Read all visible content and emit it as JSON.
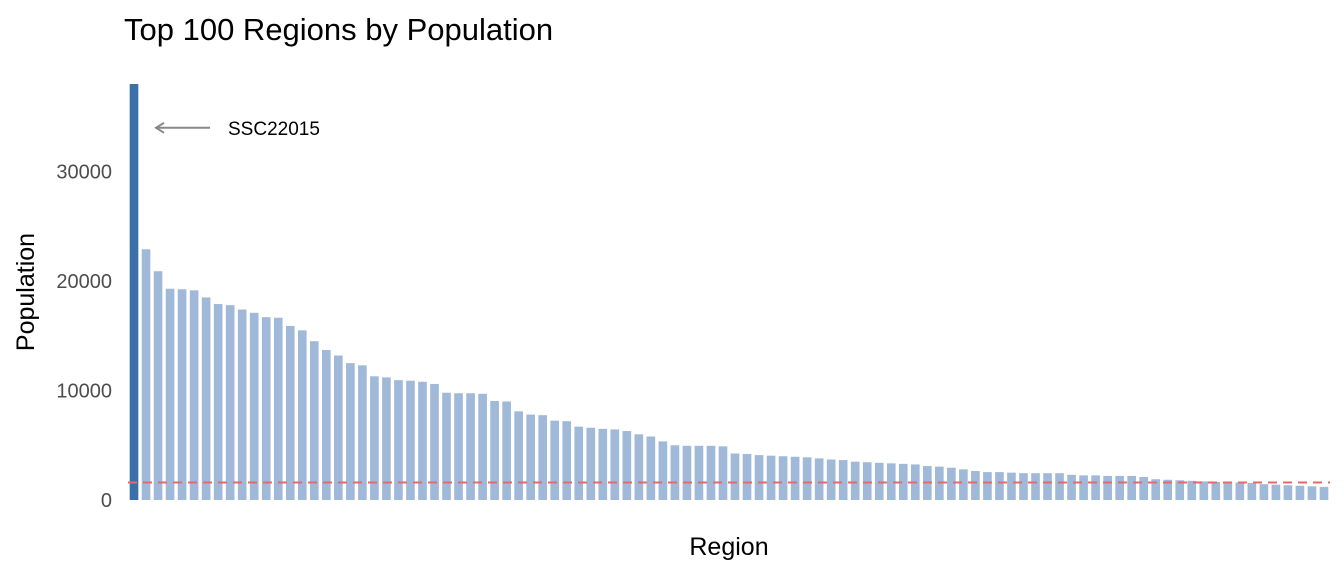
{
  "chart_data": {
    "type": "bar",
    "title": "Top 100 Regions by Population",
    "xlabel": "Region",
    "ylabel": "Population",
    "ylim": [
      0,
      38000
    ],
    "yticks": [
      0,
      10000,
      20000,
      30000
    ],
    "grid": false,
    "legend": "none",
    "colors": {
      "highlight_bar": "#3b6fa8",
      "bar": "#a0b9d9",
      "reference_line": "#e8686a",
      "annotation_arrow": "#888888",
      "text": "#000000",
      "tick_text": "#4d4d4d"
    },
    "highlight_index": 0,
    "annotation": {
      "text": "SSC22015",
      "y": 34000
    },
    "reference_line": {
      "y": 1600,
      "style": "dashed"
    },
    "values": [
      38000,
      22900,
      20900,
      19300,
      19250,
      19150,
      18500,
      17900,
      17800,
      17400,
      17100,
      16700,
      16650,
      15900,
      15500,
      14500,
      13700,
      13200,
      12500,
      12300,
      11300,
      11200,
      10950,
      10900,
      10800,
      10600,
      9800,
      9750,
      9750,
      9700,
      9050,
      9000,
      8100,
      7800,
      7750,
      7250,
      7200,
      6700,
      6600,
      6500,
      6450,
      6300,
      6000,
      5800,
      5350,
      5000,
      4950,
      4950,
      4950,
      4900,
      4250,
      4200,
      4100,
      4050,
      4000,
      3950,
      3900,
      3800,
      3700,
      3650,
      3500,
      3450,
      3400,
      3350,
      3300,
      3250,
      3100,
      3050,
      2950,
      2800,
      2650,
      2550,
      2550,
      2500,
      2450,
      2450,
      2450,
      2450,
      2300,
      2250,
      2250,
      2200,
      2200,
      2200,
      2100,
      1900,
      1850,
      1800,
      1750,
      1700,
      1650,
      1650,
      1600,
      1550,
      1450,
      1400,
      1350,
      1300,
      1250,
      1200
    ]
  }
}
